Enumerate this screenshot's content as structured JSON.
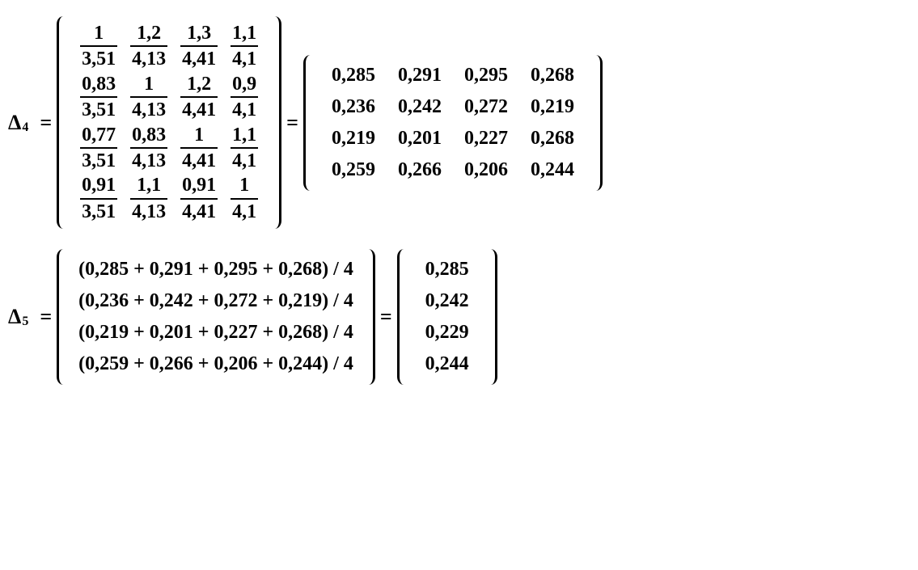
{
  "delta4": {
    "label": "Δ",
    "subscript": "4",
    "fracMatrix": {
      "rows": 4,
      "cols": 4,
      "cells": [
        {
          "num": "1",
          "den": "3,51"
        },
        {
          "num": "1,2",
          "den": "4,13"
        },
        {
          "num": "1,3",
          "den": "4,41"
        },
        {
          "num": "1,1",
          "den": "4,1"
        },
        {
          "num": "0,83",
          "den": "3,51"
        },
        {
          "num": "1",
          "den": "4,13"
        },
        {
          "num": "1,2",
          "den": "4,41"
        },
        {
          "num": "0,9",
          "den": "4,1"
        },
        {
          "num": "0,77",
          "den": "3,51"
        },
        {
          "num": "0,83",
          "den": "4,13"
        },
        {
          "num": "1",
          "den": "4,41"
        },
        {
          "num": "1,1",
          "den": "4,1"
        },
        {
          "num": "0,91",
          "den": "3,51"
        },
        {
          "num": "1,1",
          "den": "4,13"
        },
        {
          "num": "0,91",
          "den": "4,41"
        },
        {
          "num": "1",
          "den": "4,1"
        }
      ]
    },
    "resultMatrix": {
      "rows": 4,
      "cols": 4,
      "cells": [
        "0,285",
        "0,291",
        "0,295",
        "0,268",
        "0,236",
        "0,242",
        "0,272",
        "0,219",
        "0,219",
        "0,201",
        "0,227",
        "0,268",
        "0,259",
        "0,266",
        "0,206",
        "0,244"
      ]
    }
  },
  "delta5": {
    "label": "Δ",
    "subscript": "5",
    "exprMatrix": {
      "rows": 4,
      "cells": [
        "(0,285 + 0,291 + 0,295 + 0,268) / 4",
        "(0,236 + 0,242 + 0,272 + 0,219) / 4",
        "(0,219 + 0,201 + 0,227 + 0,268) / 4",
        "(0,259 + 0,266 + 0,206 + 0,244) / 4"
      ]
    },
    "resultVector": {
      "rows": 4,
      "cells": [
        "0,285",
        "0,242",
        "0,229",
        "0,244"
      ]
    }
  },
  "symbols": {
    "equals": "="
  }
}
